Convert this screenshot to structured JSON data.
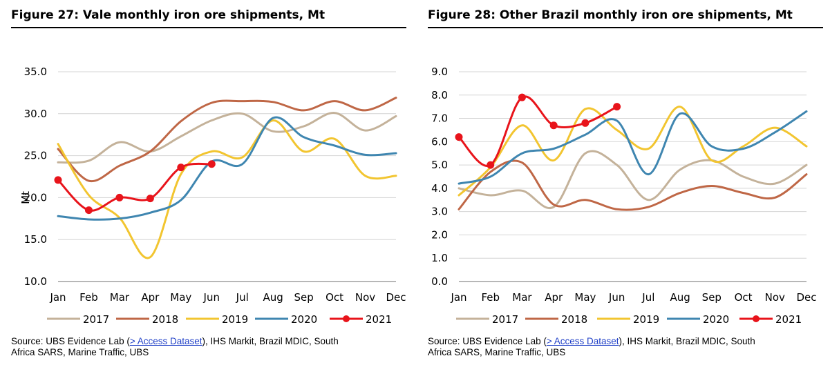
{
  "figures": [
    {
      "title": "Figure 27: Vale monthly iron ore shipments, Mt",
      "source": {
        "prefix": "Source:  UBS Evidence Lab (",
        "link": "> Access Dataset",
        "line1_suffix": "), IHS Markit, Brazil MDIC, South",
        "line2": "Africa SARS, Marine Traffic, UBS"
      }
    },
    {
      "title": "Figure 28: Other Brazil monthly iron ore shipments, Mt",
      "source": {
        "prefix": "Source:  UBS Evidence Lab (",
        "link": "> Access Dataset",
        "line1_suffix": "), IHS Markit, Brazil MDIC, South",
        "line2": "Africa SARS, Marine Traffic, UBS"
      }
    }
  ],
  "chart_data": [
    {
      "type": "line",
      "title": "Figure 27: Vale monthly iron ore shipments, Mt",
      "xlabel": "",
      "ylabel": "Mt",
      "ylim": [
        10,
        35
      ],
      "yticks": [
        10,
        15,
        20,
        25,
        30,
        35
      ],
      "ytick_labels": [
        "10.0",
        "15.0",
        "20.0",
        "25.0",
        "30.0",
        "35.0"
      ],
      "categories": [
        "Jan",
        "Feb",
        "Mar",
        "Apr",
        "May",
        "Jun",
        "Jul",
        "Aug",
        "Sep",
        "Oct",
        "Nov",
        "Dec"
      ],
      "grid": true,
      "legend_position": "bottom",
      "series": [
        {
          "name": "2017",
          "color": "#c4b29a",
          "values": [
            24.2,
            24.4,
            26.6,
            25.5,
            27.3,
            29.2,
            30.0,
            27.9,
            28.5,
            30.1,
            28.0,
            29.7
          ]
        },
        {
          "name": "2018",
          "color": "#bf6746",
          "values": [
            25.8,
            22.0,
            23.8,
            25.5,
            29.1,
            31.3,
            31.5,
            31.4,
            30.4,
            31.5,
            30.4,
            31.9
          ]
        },
        {
          "name": "2019",
          "color": "#f2c530",
          "values": [
            26.4,
            20.3,
            17.6,
            12.9,
            22.8,
            25.5,
            24.8,
            29.2,
            25.5,
            27.0,
            22.6,
            22.6
          ]
        },
        {
          "name": "2020",
          "color": "#3f86b0",
          "values": [
            17.8,
            17.4,
            17.5,
            18.2,
            19.7,
            24.3,
            24.0,
            29.5,
            27.2,
            26.2,
            25.1,
            25.3
          ]
        },
        {
          "name": "2021",
          "color": "#e8141b",
          "markers": true,
          "values": [
            22.1,
            18.5,
            20.0,
            19.9,
            23.6,
            24.0,
            null,
            null,
            null,
            null,
            null,
            null
          ]
        }
      ]
    },
    {
      "type": "line",
      "title": "Figure 28: Other Brazil monthly iron ore shipments, Mt",
      "xlabel": "",
      "ylabel": "",
      "ylim": [
        0,
        9
      ],
      "yticks": [
        0,
        1,
        2,
        3,
        4,
        5,
        6,
        7,
        8,
        9
      ],
      "ytick_labels": [
        "0.0",
        "1.0",
        "2.0",
        "3.0",
        "4.0",
        "5.0",
        "6.0",
        "7.0",
        "8.0",
        "9.0"
      ],
      "categories": [
        "Jan",
        "Feb",
        "Mar",
        "Apr",
        "May",
        "Jun",
        "Jul",
        "Aug",
        "Sep",
        "Oct",
        "Nov",
        "Dec"
      ],
      "grid": true,
      "legend_position": "bottom",
      "series": [
        {
          "name": "2017",
          "color": "#c4b29a",
          "values": [
            4.0,
            3.7,
            3.9,
            3.2,
            5.5,
            5.0,
            3.5,
            4.8,
            5.2,
            4.5,
            4.2,
            5.0
          ]
        },
        {
          "name": "2018",
          "color": "#bf6746",
          "values": [
            3.1,
            4.7,
            5.1,
            3.3,
            3.5,
            3.1,
            3.2,
            3.8,
            4.1,
            3.8,
            3.6,
            4.6
          ]
        },
        {
          "name": "2019",
          "color": "#f2c530",
          "values": [
            3.7,
            4.9,
            6.7,
            5.2,
            7.4,
            6.5,
            5.7,
            7.5,
            5.2,
            5.8,
            6.6,
            5.8
          ]
        },
        {
          "name": "2020",
          "color": "#3f86b0",
          "values": [
            4.2,
            4.5,
            5.5,
            5.7,
            6.3,
            6.9,
            4.6,
            7.2,
            5.8,
            5.7,
            6.4,
            7.3
          ]
        },
        {
          "name": "2021",
          "color": "#e8141b",
          "markers": true,
          "values": [
            6.2,
            5.0,
            7.9,
            6.7,
            6.8,
            7.5,
            null,
            null,
            null,
            null,
            null,
            null
          ]
        }
      ]
    }
  ]
}
